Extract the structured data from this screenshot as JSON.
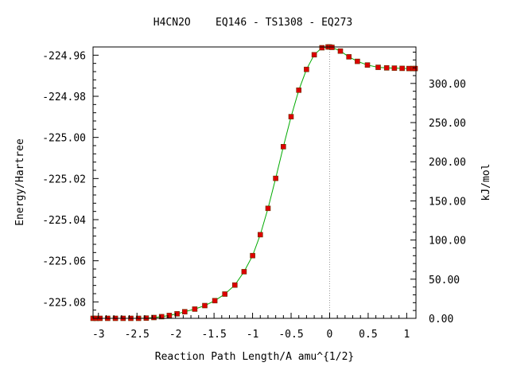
{
  "title": "H4CN2O    EQ146 - TS1308 - EQ273",
  "chart_data": {
    "type": "line",
    "title": "H4CN2O    EQ146 - TS1308 - EQ273",
    "xlabel": "Reaction Path Length/A amu^{1/2}",
    "ylabel": "Energy/Hartree",
    "y2label": "kJ/mol",
    "xlim": [
      -3.07,
      1.12
    ],
    "ylim": [
      -225.088,
      -224.956
    ],
    "y2lim": [
      0,
      346.6
    ],
    "xticks": [
      -3,
      -2.5,
      -2,
      -1.5,
      -1,
      -0.5,
      0,
      0.5,
      1
    ],
    "xtick_labels": [
      "-3",
      "-2.5",
      "-2",
      "-1.5",
      "-1",
      "-0.5",
      "0",
      "0.5",
      "1"
    ],
    "yticks": [
      -224.96,
      -224.98,
      -225.0,
      -225.02,
      -225.04,
      -225.06,
      -225.08
    ],
    "ytick_labels": [
      "-224.96",
      "-224.98",
      "-225.00",
      "-225.02",
      "-225.04",
      "-225.06",
      "-225.08"
    ],
    "y2ticks": [
      0,
      50,
      100,
      150,
      200,
      250,
      300
    ],
    "y2tick_labels": [
      "0.00",
      "50.00",
      "100.00",
      "150.00",
      "200.00",
      "250.00",
      "300.00"
    ],
    "ts_marker_x": 0,
    "grid": false,
    "colors": {
      "line": "#00aa00",
      "marker": "#dd0000",
      "marker_edge": "#663300",
      "ts_line": "#999999"
    },
    "series": [
      {
        "x": [
          -3.07,
          -3.03,
          -2.98,
          -2.88,
          -2.78,
          -2.68,
          -2.58,
          -2.48,
          -2.38,
          -2.28,
          -2.18,
          -2.08,
          -1.98,
          -1.88,
          -1.75,
          -1.62,
          -1.49,
          -1.36,
          -1.23,
          -1.11,
          -1.0,
          -0.9,
          -0.8,
          -0.7,
          -0.6,
          -0.5,
          -0.4,
          -0.3,
          -0.2,
          -0.1,
          -0.02,
          0.0,
          0.03,
          0.14,
          0.25,
          0.36,
          0.49,
          0.63,
          0.74,
          0.84,
          0.94,
          1.03,
          1.08,
          1.11
        ],
        "y": [
          -225.088,
          -225.088,
          -225.088,
          -225.088,
          -225.088,
          -225.088,
          -225.088,
          -225.088,
          -225.0879,
          -225.0876,
          -225.0872,
          -225.0866,
          -225.0858,
          -225.0848,
          -225.0835,
          -225.0818,
          -225.0794,
          -225.0762,
          -225.0718,
          -225.0653,
          -225.0575,
          -225.0473,
          -225.0345,
          -225.0199,
          -225.0045,
          -224.9899,
          -224.977,
          -224.9669,
          -224.9598,
          -224.9564,
          -224.956,
          -224.956,
          -224.9562,
          -224.958,
          -224.9608,
          -224.963,
          -224.9648,
          -224.9659,
          -224.9662,
          -224.9663,
          -224.9664,
          -224.9665,
          -224.9665,
          -224.9665
        ]
      }
    ]
  }
}
